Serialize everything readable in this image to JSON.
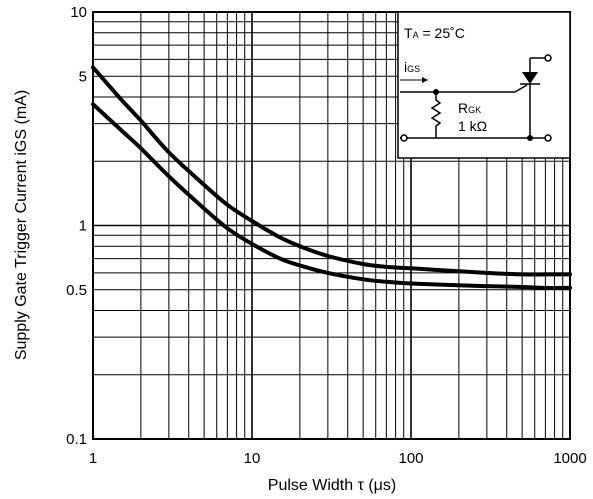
{
  "chart_data": {
    "type": "line",
    "xlabel": "Pulse Width τ (μs)",
    "ylabel": "Supply Gate Trigger Current iGS (mA)",
    "xscale": "log",
    "yscale": "log",
    "xlim": [
      1,
      1000
    ],
    "ylim": [
      0.1,
      10
    ],
    "grid": true,
    "x_ticks": [
      {
        "value": 1,
        "label": "1"
      },
      {
        "value": 10,
        "label": "10"
      },
      {
        "value": 100,
        "label": "100"
      },
      {
        "value": 1000,
        "label": "1000"
      }
    ],
    "y_ticks": [
      {
        "value": 10,
        "label": "10"
      },
      {
        "value": 5,
        "label": "5"
      },
      {
        "value": 1,
        "label": "1"
      },
      {
        "value": 0.5,
        "label": "0.5"
      },
      {
        "value": 0.1,
        "label": "0.1"
      }
    ],
    "series": [
      {
        "x": [
          1,
          1.5,
          2,
          3,
          5,
          7,
          10,
          15,
          20,
          30,
          50,
          70,
          100,
          200,
          300,
          500,
          700,
          1000
        ],
        "values": [
          5.5,
          3.9,
          3.1,
          2.2,
          1.55,
          1.25,
          1.05,
          0.88,
          0.8,
          0.72,
          0.66,
          0.64,
          0.63,
          0.61,
          0.6,
          0.59,
          0.59,
          0.59
        ]
      },
      {
        "x": [
          1,
          1.5,
          2,
          3,
          5,
          7,
          10,
          15,
          20,
          30,
          50,
          70,
          100,
          200,
          300,
          500,
          700,
          1000
        ],
        "values": [
          3.7,
          2.8,
          2.3,
          1.7,
          1.2,
          0.97,
          0.82,
          0.7,
          0.65,
          0.6,
          0.56,
          0.545,
          0.535,
          0.525,
          0.52,
          0.515,
          0.51,
          0.51
        ]
      }
    ],
    "inset": {
      "condition": {
        "base": "T",
        "sub": "A",
        "rest": " = 25˚C"
      },
      "current": {
        "base": "i",
        "sub": "GS"
      },
      "resistor": {
        "base": "R",
        "sub": "GK"
      },
      "resistor_value": "1 kΩ"
    }
  }
}
